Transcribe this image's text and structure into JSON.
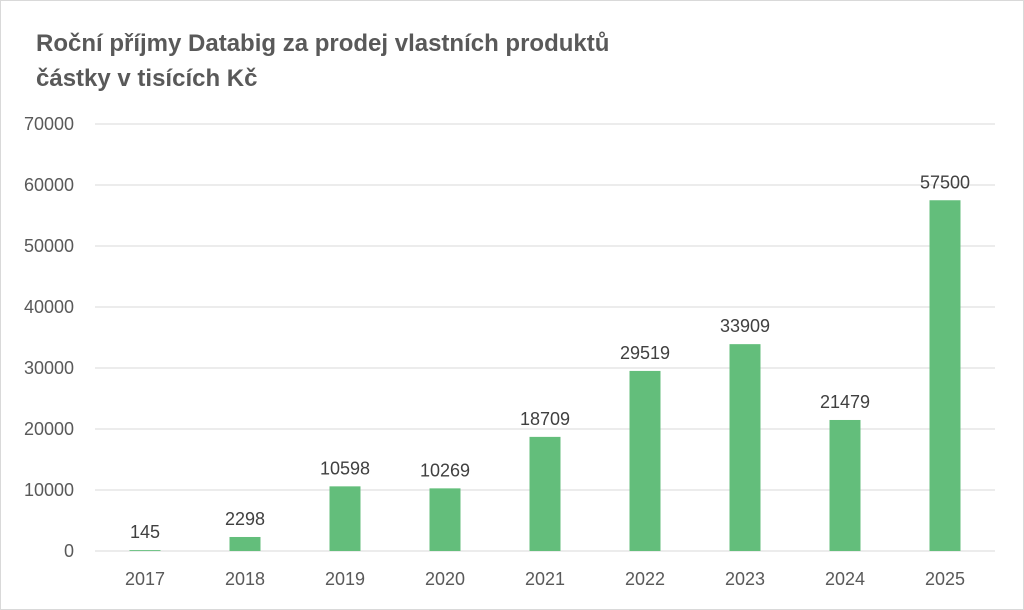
{
  "chart_data": {
    "type": "bar",
    "title": "Roční příjmy Databig za prodej vlastních produktů",
    "subtitle": "částky v tisících Kč",
    "categories": [
      "2017",
      "2018",
      "2019",
      "2020",
      "2021",
      "2022",
      "2023",
      "2024",
      "2025"
    ],
    "series": [
      {
        "values": [
          145,
          2298,
          10598,
          10269,
          18709,
          29519,
          33909,
          21479,
          57500
        ]
      }
    ],
    "ylim": [
      0,
      70000
    ],
    "yticks": [
      0,
      10000,
      20000,
      30000,
      40000,
      50000,
      60000,
      70000
    ],
    "grid": true,
    "legend": "none",
    "data_labels": true,
    "colors": {
      "bar": "#63be7b",
      "grid": "#d9d9d9",
      "text": "#595959",
      "label": "#404040"
    }
  }
}
